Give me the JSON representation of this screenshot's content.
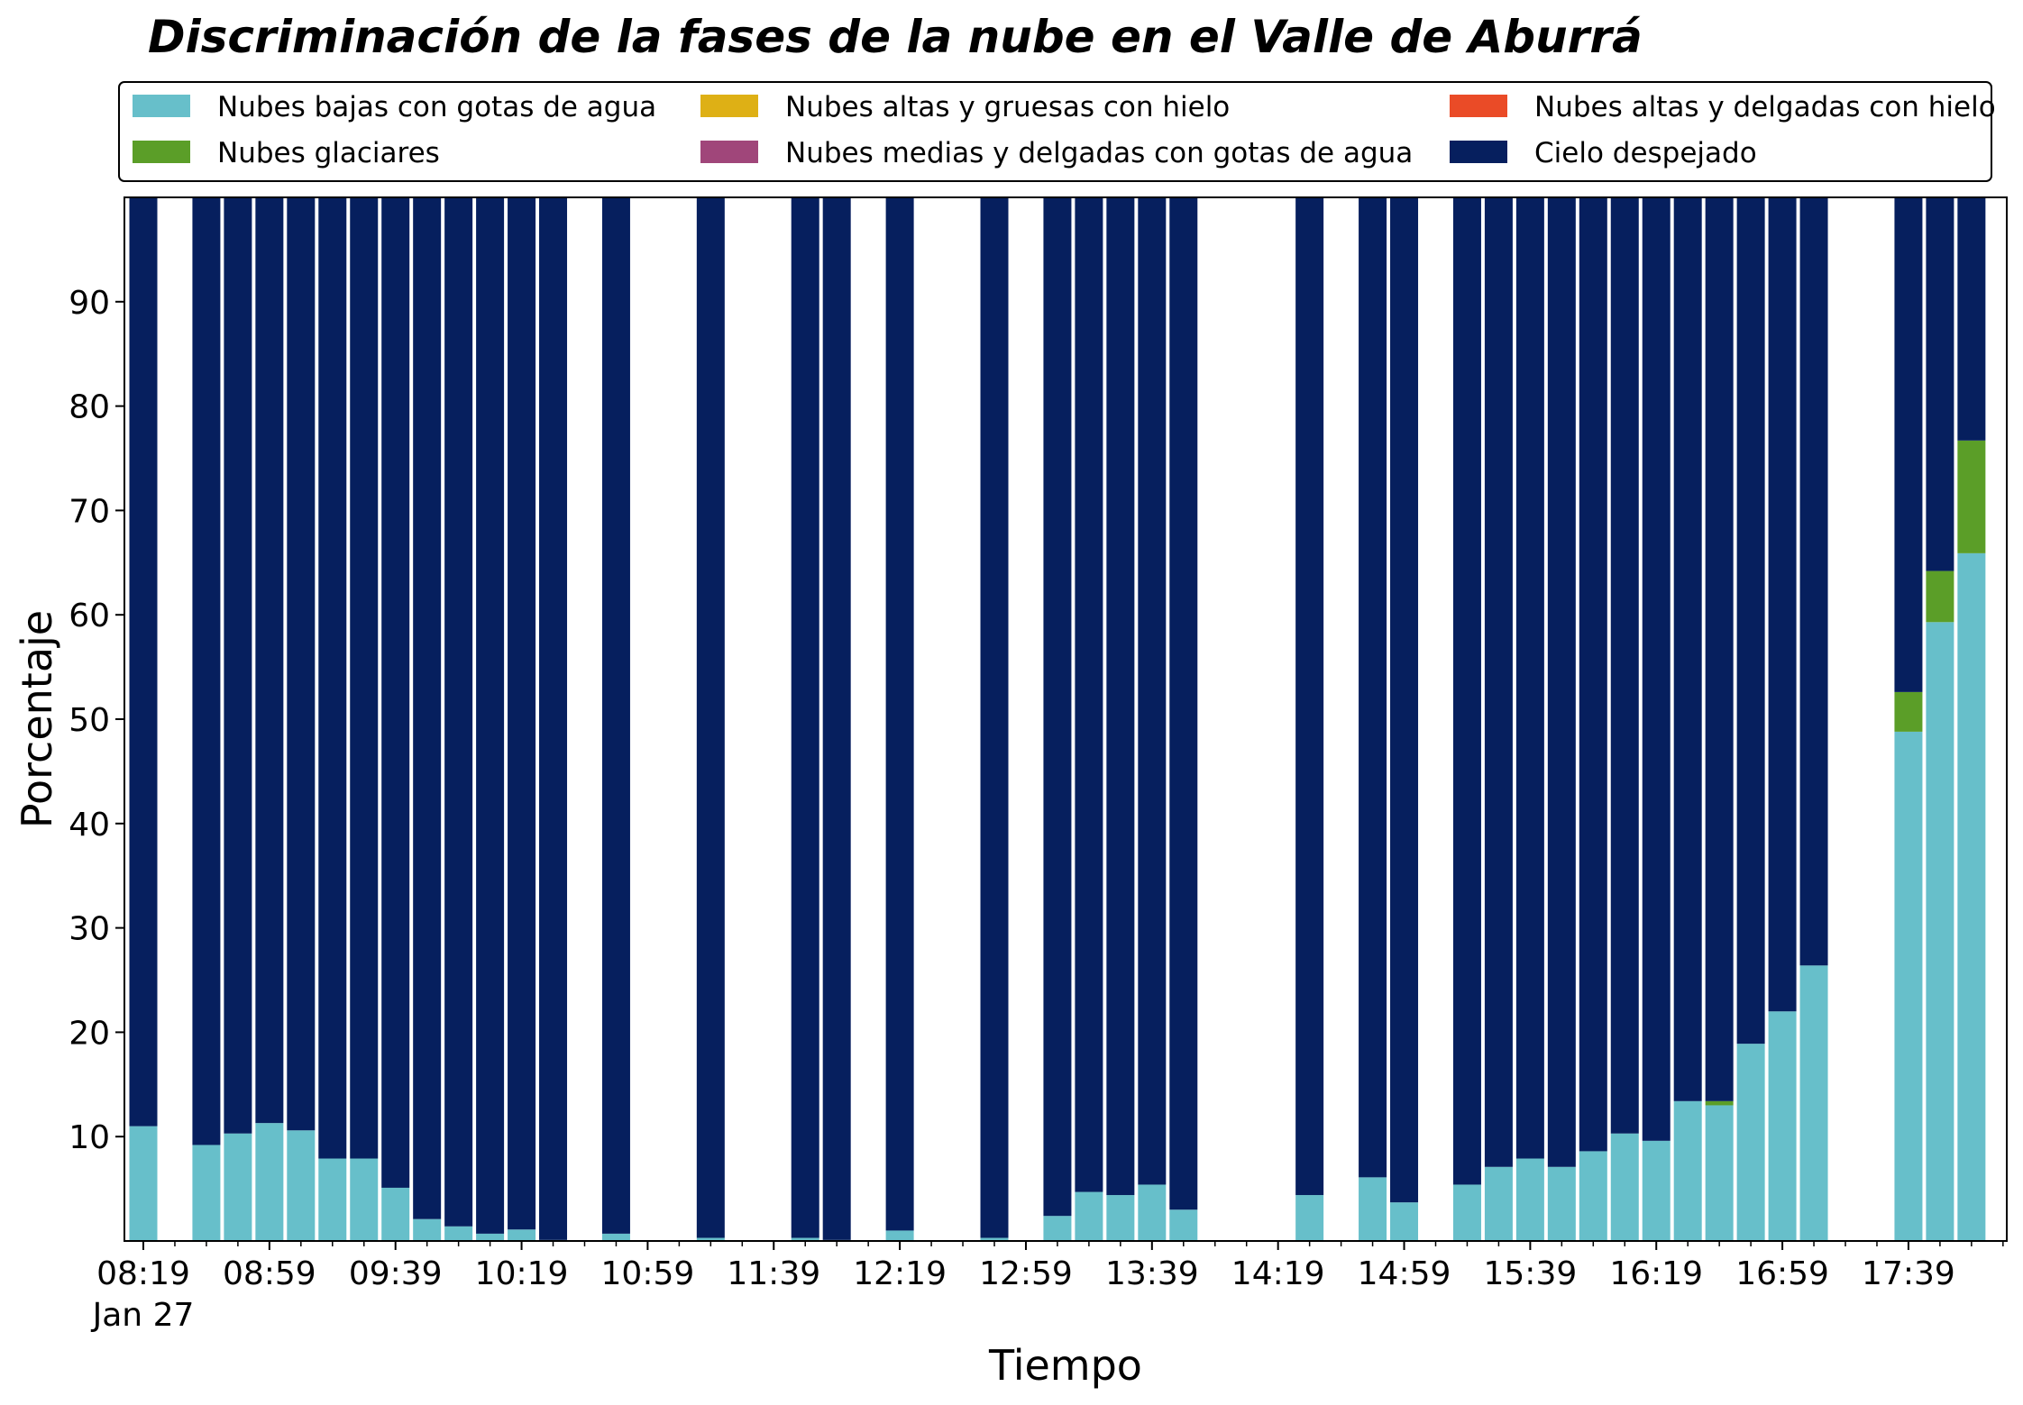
{
  "chart_data": {
    "type": "bar",
    "stacked": true,
    "title": "Discriminación de la fases de la nube en el Valle de Aburrá",
    "xlabel": "Tiempo",
    "ylabel": "Porcentaje",
    "ylim": [
      0,
      100
    ],
    "yticks": [
      10,
      20,
      30,
      40,
      50,
      60,
      70,
      80,
      90
    ],
    "xlim": [
      0,
      59
    ],
    "xticks": [
      {
        "pos": 0,
        "label": "08:19"
      },
      {
        "pos": 4,
        "label": "08:59"
      },
      {
        "pos": 8,
        "label": "09:39"
      },
      {
        "pos": 12,
        "label": "10:19"
      },
      {
        "pos": 16,
        "label": "10:59"
      },
      {
        "pos": 20,
        "label": "11:39"
      },
      {
        "pos": 24,
        "label": "12:19"
      },
      {
        "pos": 28,
        "label": "12:59"
      },
      {
        "pos": 32,
        "label": "13:39"
      },
      {
        "pos": 36,
        "label": "14:19"
      },
      {
        "pos": 40,
        "label": "14:59"
      },
      {
        "pos": 44,
        "label": "15:39"
      },
      {
        "pos": 48,
        "label": "16:19"
      },
      {
        "pos": 52,
        "label": "16:59"
      },
      {
        "pos": 56,
        "label": "17:39"
      }
    ],
    "xtick_sublabel": "Jan 27",
    "grid": false,
    "legend_position": "top",
    "series": [
      {
        "name": "Nubes bajas con gotas de agua",
        "color": "#67bfca"
      },
      {
        "name": "Nubes altas y gruesas con hielo",
        "color": "#deb015"
      },
      {
        "name": "Nubes altas y delgadas con hielo",
        "color": "#ea4b27"
      },
      {
        "name": "Nubes glaciares",
        "color": "#5b9e28"
      },
      {
        "name": "Nubes medias y delgadas con gotas de agua",
        "color": "#a0467a"
      },
      {
        "name": "Cielo despejado",
        "color": "#061f5e"
      }
    ],
    "legend_order": [
      0,
      1,
      2,
      3,
      4,
      5
    ],
    "bars": [
      {
        "x": 0,
        "low": 11.0,
        "glacial": 0,
        "clear": 89.0
      },
      {
        "x": 2,
        "low": 9.2,
        "glacial": 0,
        "clear": 90.8
      },
      {
        "x": 3,
        "low": 10.3,
        "glacial": 0,
        "clear": 89.7
      },
      {
        "x": 4,
        "low": 11.3,
        "glacial": 0,
        "clear": 88.7
      },
      {
        "x": 5,
        "low": 10.6,
        "glacial": 0,
        "clear": 89.4
      },
      {
        "x": 6,
        "low": 7.9,
        "glacial": 0,
        "clear": 92.1
      },
      {
        "x": 7,
        "low": 7.9,
        "glacial": 0,
        "clear": 92.1
      },
      {
        "x": 8,
        "low": 5.1,
        "glacial": 0,
        "clear": 94.9
      },
      {
        "x": 9,
        "low": 2.1,
        "glacial": 0,
        "clear": 97.9
      },
      {
        "x": 10,
        "low": 1.4,
        "glacial": 0,
        "clear": 98.6
      },
      {
        "x": 11,
        "low": 0.7,
        "glacial": 0,
        "clear": 99.3
      },
      {
        "x": 12,
        "low": 1.1,
        "glacial": 0,
        "clear": 98.9
      },
      {
        "x": 13,
        "low": 0.1,
        "glacial": 0,
        "clear": 99.9
      },
      {
        "x": 15,
        "low": 0.7,
        "glacial": 0,
        "clear": 99.3
      },
      {
        "x": 18,
        "low": 0.3,
        "glacial": 0,
        "clear": 99.7
      },
      {
        "x": 21,
        "low": 0.3,
        "glacial": 0,
        "clear": 99.7
      },
      {
        "x": 22,
        "low": 0.1,
        "glacial": 0,
        "clear": 99.9
      },
      {
        "x": 24,
        "low": 1.0,
        "glacial": 0,
        "clear": 99.0
      },
      {
        "x": 27,
        "low": 0.3,
        "glacial": 0,
        "clear": 99.7
      },
      {
        "x": 29,
        "low": 2.4,
        "glacial": 0,
        "clear": 97.6
      },
      {
        "x": 30,
        "low": 4.7,
        "glacial": 0,
        "clear": 95.3
      },
      {
        "x": 31,
        "low": 4.4,
        "glacial": 0,
        "clear": 95.6
      },
      {
        "x": 32,
        "low": 5.4,
        "glacial": 0,
        "clear": 94.6
      },
      {
        "x": 33,
        "low": 3.0,
        "glacial": 0,
        "clear": 97.0
      },
      {
        "x": 37,
        "low": 4.4,
        "glacial": 0,
        "clear": 95.6
      },
      {
        "x": 39,
        "low": 6.1,
        "glacial": 0,
        "clear": 93.9
      },
      {
        "x": 40,
        "low": 3.7,
        "glacial": 0,
        "clear": 96.3
      },
      {
        "x": 42,
        "low": 5.4,
        "glacial": 0,
        "clear": 94.6
      },
      {
        "x": 43,
        "low": 7.1,
        "glacial": 0,
        "clear": 92.9
      },
      {
        "x": 44,
        "low": 7.9,
        "glacial": 0,
        "clear": 92.1
      },
      {
        "x": 45,
        "low": 7.1,
        "glacial": 0,
        "clear": 92.9
      },
      {
        "x": 46,
        "low": 8.6,
        "glacial": 0,
        "clear": 91.4
      },
      {
        "x": 47,
        "low": 10.3,
        "glacial": 0,
        "clear": 89.7
      },
      {
        "x": 48,
        "low": 9.6,
        "glacial": 0,
        "clear": 90.4
      },
      {
        "x": 49,
        "low": 13.4,
        "glacial": 0,
        "clear": 86.6
      },
      {
        "x": 50,
        "low": 13.0,
        "glacial": 0.4,
        "clear": 86.6
      },
      {
        "x": 51,
        "low": 18.9,
        "glacial": 0,
        "clear": 81.1
      },
      {
        "x": 52,
        "low": 22.0,
        "glacial": 0,
        "clear": 78.0
      },
      {
        "x": 53,
        "low": 26.4,
        "glacial": 0,
        "clear": 73.6
      },
      {
        "x": 56,
        "low": 48.8,
        "glacial": 3.8,
        "clear": 47.4
      },
      {
        "x": 57,
        "low": 59.3,
        "glacial": 4.9,
        "clear": 35.8
      },
      {
        "x": 58,
        "low": 65.9,
        "glacial": 10.8,
        "clear": 23.3
      }
    ]
  }
}
